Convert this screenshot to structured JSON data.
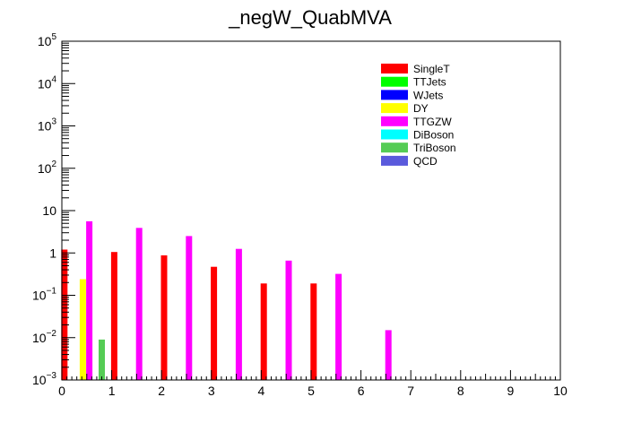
{
  "chart_data": {
    "type": "bar",
    "title": "_negW_QuabMVA",
    "xlabel": "",
    "ylabel": "",
    "xlim": [
      0,
      10
    ],
    "ylim": [
      0.001,
      100000
    ],
    "yscale": "log",
    "grid": false,
    "legend_position": "top-right",
    "x_tick_labels": [
      "0",
      "1",
      "2",
      "3",
      "4",
      "5",
      "6",
      "7",
      "8",
      "9",
      "10"
    ],
    "y_tick_labels": [
      {
        "base": "10",
        "exp": "5"
      },
      {
        "base": "10",
        "exp": "4"
      },
      {
        "base": "10",
        "exp": "3"
      },
      {
        "base": "10",
        "exp": "2"
      },
      {
        "base": "10",
        "exp": ""
      },
      {
        "base": "1",
        "exp": ""
      },
      {
        "base": "10",
        "exp": "−1"
      },
      {
        "base": "10",
        "exp": "−2"
      },
      {
        "base": "10",
        "exp": "−3"
      }
    ],
    "series": [
      {
        "name": "SingleT",
        "color": "#ff0000",
        "points": [
          {
            "x": 0.05,
            "y": 1.2
          },
          {
            "x": 1.05,
            "y": 1.05
          },
          {
            "x": 2.05,
            "y": 0.88
          },
          {
            "x": 3.05,
            "y": 0.47
          },
          {
            "x": 4.05,
            "y": 0.19
          },
          {
            "x": 5.05,
            "y": 0.19
          }
        ]
      },
      {
        "name": "TTJets",
        "color": "#00ff00",
        "points": []
      },
      {
        "name": "WJets",
        "color": "#0000ff",
        "points": []
      },
      {
        "name": "DY",
        "color": "#ffff00",
        "points": [
          {
            "x": 0.42,
            "y": 0.24
          }
        ]
      },
      {
        "name": "TTGZW",
        "color": "#ff00ff",
        "points": [
          {
            "x": 0.55,
            "y": 5.6
          },
          {
            "x": 1.55,
            "y": 3.9
          },
          {
            "x": 2.55,
            "y": 2.5
          },
          {
            "x": 3.55,
            "y": 1.25
          },
          {
            "x": 4.55,
            "y": 0.66
          },
          {
            "x": 5.55,
            "y": 0.32
          },
          {
            "x": 6.55,
            "y": 0.015
          }
        ]
      },
      {
        "name": "DiBoson",
        "color": "#00ffff",
        "points": []
      },
      {
        "name": "TriBoson",
        "color": "#55cc55",
        "points": [
          {
            "x": 0.8,
            "y": 0.009
          }
        ]
      },
      {
        "name": "QCD",
        "color": "#5a5adc",
        "points": []
      }
    ]
  }
}
